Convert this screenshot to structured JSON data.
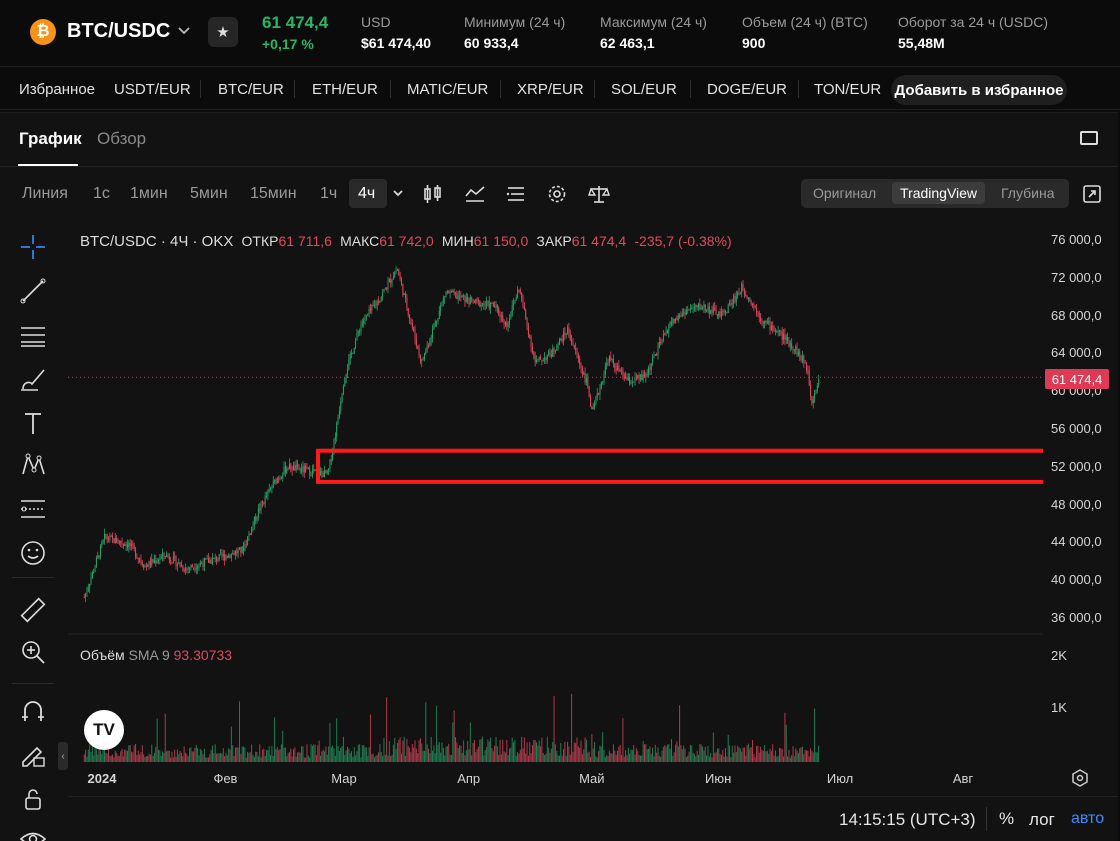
{
  "ticker": {
    "logo_symbol": "₿",
    "pair": "BTC/USDC",
    "last_price": "61 474,4",
    "change": "+0,17 %",
    "stats": [
      {
        "label": "USD",
        "value": "$61 474,40"
      },
      {
        "label": "Минимум (24 ч)",
        "value": "60 933,4"
      },
      {
        "label": "Максимум (24 ч)",
        "value": "62 463,1"
      },
      {
        "label": "Объем (24 ч) (BTC)",
        "value": "900"
      },
      {
        "label": "Оборот за 24 ч (USDC)",
        "value": "55,48M"
      }
    ]
  },
  "favorites": {
    "title": "Избранное",
    "items": [
      "USDT/EUR",
      "BTC/EUR",
      "ETH/EUR",
      "MATIC/EUR",
      "XRP/EUR",
      "SOL/EUR",
      "DOGE/EUR",
      "TON/EUR"
    ],
    "add_label": "Добавить в избранное"
  },
  "tabs": {
    "chart": "График",
    "overview": "Обзор"
  },
  "timeframes": [
    "Линия",
    "1с",
    "1мин",
    "5мин",
    "15мин",
    "1ч",
    "4ч"
  ],
  "active_timeframe": "4ч",
  "view_modes": {
    "original": "Оригинал",
    "tradingview": "TradingView",
    "depth": "Глубина",
    "active": "TradingView"
  },
  "legend": {
    "symbol": "BTC/USDC · 4Ч · OKX",
    "open_label": "ОТКР",
    "open": "61 711,6",
    "high_label": "МАКС",
    "high": "61 742,0",
    "low_label": "МИН",
    "low": "61 150,0",
    "close_label": "ЗАКР",
    "close": "61 474,4",
    "change": "-235,7 (-0.38%)"
  },
  "volume_legend": {
    "label": "Объём",
    "indicator": "SMA 9",
    "value": "93.30733"
  },
  "current_price_tag": "61 474,4",
  "time_readout": "14:15:15 (UTC+3)",
  "scale_buttons": {
    "percent": "%",
    "log": "лог",
    "auto": "авто"
  },
  "tv_logo": "TV",
  "chart_data": {
    "type": "candlestick",
    "y_axis": {
      "ticks": [
        "76 000,0",
        "72 000,0",
        "68 000,0",
        "64 000,0",
        "60 000,0",
        "56 000,0",
        "52 000,0",
        "48 000,0",
        "44 000,0",
        "40 000,0",
        "36 000,0"
      ],
      "min": 36000,
      "max": 76000
    },
    "volume_axis": {
      "ticks": [
        "2K",
        "1K"
      ]
    },
    "x_axis": {
      "ticks": [
        "2024",
        "Фев",
        "Мар",
        "Апр",
        "Май",
        "Июн",
        "Июл",
        "Авг"
      ]
    },
    "current_price": 61474.4,
    "highlight_zone": {
      "from": 50400,
      "to": 53700,
      "color": "#ff1a1a"
    },
    "colors": {
      "up": "#26a269",
      "down": "#e0495f"
    },
    "price_path": [
      {
        "date": "2023-12-28",
        "price": 38200
      },
      {
        "date": "2024-01-02",
        "price": 44500
      },
      {
        "date": "2024-01-08",
        "price": 43800
      },
      {
        "date": "2024-01-12",
        "price": 41500
      },
      {
        "date": "2024-01-17",
        "price": 42700
      },
      {
        "date": "2024-01-22",
        "price": 41200
      },
      {
        "date": "2024-01-26",
        "price": 41800
      },
      {
        "date": "2024-02-01",
        "price": 42600
      },
      {
        "date": "2024-02-05",
        "price": 43200
      },
      {
        "date": "2024-02-09",
        "price": 47500
      },
      {
        "date": "2024-02-13",
        "price": 50500
      },
      {
        "date": "2024-02-16",
        "price": 52000
      },
      {
        "date": "2024-02-22",
        "price": 51500
      },
      {
        "date": "2024-02-26",
        "price": 51200
      },
      {
        "date": "2024-02-28",
        "price": 56000
      },
      {
        "date": "2024-03-01",
        "price": 61500
      },
      {
        "date": "2024-03-05",
        "price": 67000
      },
      {
        "date": "2024-03-10",
        "price": 70000
      },
      {
        "date": "2024-03-14",
        "price": 73000
      },
      {
        "date": "2024-03-20",
        "price": 63000
      },
      {
        "date": "2024-03-26",
        "price": 70500
      },
      {
        "date": "2024-04-01",
        "price": 69500
      },
      {
        "date": "2024-04-07",
        "price": 69000
      },
      {
        "date": "2024-04-10",
        "price": 67000
      },
      {
        "date": "2024-04-13",
        "price": 71000
      },
      {
        "date": "2024-04-17",
        "price": 63000
      },
      {
        "date": "2024-04-21",
        "price": 64000
      },
      {
        "date": "2024-04-25",
        "price": 66500
      },
      {
        "date": "2024-04-30",
        "price": 60500
      },
      {
        "date": "2024-05-01",
        "price": 57500
      },
      {
        "date": "2024-05-05",
        "price": 63500
      },
      {
        "date": "2024-05-10",
        "price": 61000
      },
      {
        "date": "2024-05-14",
        "price": 61500
      },
      {
        "date": "2024-05-20",
        "price": 67000
      },
      {
        "date": "2024-05-24",
        "price": 68500
      },
      {
        "date": "2024-05-28",
        "price": 69000
      },
      {
        "date": "2024-06-02",
        "price": 68000
      },
      {
        "date": "2024-06-07",
        "price": 71000
      },
      {
        "date": "2024-06-12",
        "price": 67500
      },
      {
        "date": "2024-06-16",
        "price": 66200
      },
      {
        "date": "2024-06-20",
        "price": 64500
      },
      {
        "date": "2024-06-23",
        "price": 62500
      },
      {
        "date": "2024-06-24",
        "price": 59000
      },
      {
        "date": "2024-06-26",
        "price": 61474
      }
    ]
  }
}
